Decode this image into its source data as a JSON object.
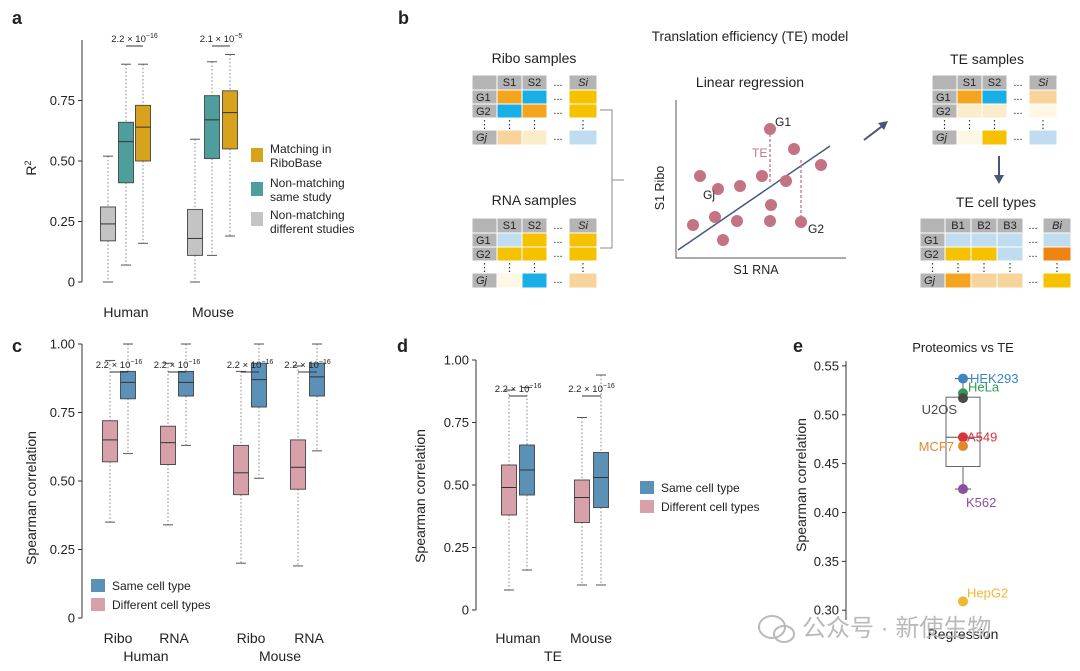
{
  "panels": {
    "a": "a",
    "b": "b",
    "c": "c",
    "d": "d",
    "e": "e"
  },
  "colors": {
    "gold": "#d9a21c",
    "teal": "#4f9e9e",
    "grey": "#c4c4c4",
    "blue": "#5b90b7",
    "pink": "#d8a0a8",
    "regLine": "#45578c",
    "dot": "#c47384",
    "teLine": "#c47384",
    "arrow": "#45587a",
    "cell_orange": "#f4a41e",
    "cell_yellow": "#f6c200",
    "cell_blue": "#1aaee6",
    "cell_lightblue": "#c0dcef",
    "cell_peach": "#f6d49b",
    "cell_cream": "#fbedc9",
    "cell_pale": "#fdf7e6",
    "cell_header": "#b4b4b4",
    "cell_deeporange": "#f0820e"
  },
  "chart_data": [
    {
      "id": "a",
      "type": "box",
      "ylabel": "R",
      "ylabel_sup": "2",
      "ylim": [
        0,
        1.0
      ],
      "yticks": [
        0,
        0.25,
        0.5,
        0.75
      ],
      "yticklabels": [
        "0",
        "0.25",
        "0.50",
        "0.75"
      ],
      "groups": [
        "Human",
        "Mouse"
      ],
      "series": [
        {
          "name": "Non-matching\ndifferent studies",
          "color": "#c4c4c4"
        },
        {
          "name": "Non-matching\nsame study",
          "color": "#4f9e9e"
        },
        {
          "name": "Matching in\nRiboBase",
          "color": "#d9a21c"
        }
      ],
      "legend": [
        {
          "line1": "Matching in",
          "line2": "RiboBase",
          "color": "#d9a21c"
        },
        {
          "line1": "Non-matching",
          "line2": "same study",
          "color": "#4f9e9e"
        },
        {
          "line1": "Non-matching",
          "line2": "different studies",
          "color": "#c4c4c4"
        }
      ],
      "boxes": [
        {
          "group": "Human",
          "series": 0,
          "min": 0.0,
          "q1": 0.17,
          "median": 0.24,
          "q3": 0.31,
          "max": 0.52
        },
        {
          "group": "Human",
          "series": 1,
          "min": 0.07,
          "q1": 0.41,
          "median": 0.58,
          "q3": 0.66,
          "max": 0.9
        },
        {
          "group": "Human",
          "series": 2,
          "min": 0.16,
          "q1": 0.5,
          "median": 0.64,
          "q3": 0.73,
          "max": 0.9
        },
        {
          "group": "Mouse",
          "series": 0,
          "min": 0.0,
          "q1": 0.11,
          "median": 0.18,
          "q3": 0.3,
          "max": 0.59
        },
        {
          "group": "Mouse",
          "series": 1,
          "min": 0.11,
          "q1": 0.51,
          "median": 0.67,
          "q3": 0.77,
          "max": 0.91
        },
        {
          "group": "Mouse",
          "series": 2,
          "min": 0.19,
          "q1": 0.55,
          "median": 0.7,
          "q3": 0.79,
          "max": 0.94
        }
      ],
      "pvalues": [
        {
          "group": "Human",
          "text": "2.2 × 10",
          "exp": "−16"
        },
        {
          "group": "Mouse",
          "text": "2.1 × 10",
          "exp": "−5"
        }
      ]
    },
    {
      "id": "c",
      "type": "box",
      "ylabel": "Spearman correlation",
      "ylim": [
        0,
        1.0
      ],
      "yticks": [
        0,
        0.25,
        0.5,
        0.75,
        1.0
      ],
      "yticklabels": [
        "0",
        "0.25",
        "0.50",
        "0.75",
        "1.00"
      ],
      "groups": [
        "Ribo",
        "RNA",
        "Ribo",
        "RNA"
      ],
      "supergroups": [
        "Human",
        "Mouse"
      ],
      "series": [
        {
          "name": "Different cell types",
          "color": "#d8a0a8"
        },
        {
          "name": "Same cell type",
          "color": "#5b90b7"
        }
      ],
      "legend": [
        {
          "label": "Same cell type",
          "color": "#5b90b7"
        },
        {
          "label": "Different cell types",
          "color": "#d8a0a8"
        }
      ],
      "boxes": [
        {
          "group": 0,
          "series": 0,
          "min": 0.35,
          "q1": 0.57,
          "median": 0.65,
          "q3": 0.72,
          "max": 0.94
        },
        {
          "group": 0,
          "series": 1,
          "min": 0.6,
          "q1": 0.8,
          "median": 0.86,
          "q3": 0.9,
          "max": 1.0
        },
        {
          "group": 1,
          "series": 0,
          "min": 0.34,
          "q1": 0.56,
          "median": 0.64,
          "q3": 0.7,
          "max": 0.93
        },
        {
          "group": 1,
          "series": 1,
          "min": 0.63,
          "q1": 0.81,
          "median": 0.86,
          "q3": 0.9,
          "max": 1.0
        },
        {
          "group": 2,
          "series": 0,
          "min": 0.2,
          "q1": 0.45,
          "median": 0.53,
          "q3": 0.63,
          "max": 0.9
        },
        {
          "group": 2,
          "series": 1,
          "min": 0.51,
          "q1": 0.77,
          "median": 0.87,
          "q3": 0.93,
          "max": 1.0
        },
        {
          "group": 3,
          "series": 0,
          "min": 0.19,
          "q1": 0.47,
          "median": 0.55,
          "q3": 0.65,
          "max": 0.92
        },
        {
          "group": 3,
          "series": 1,
          "min": 0.61,
          "q1": 0.81,
          "median": 0.88,
          "q3": 0.93,
          "max": 1.0
        }
      ],
      "pvalues": [
        {
          "group": 0,
          "text": "2.2 × 10",
          "exp": "−16"
        },
        {
          "group": 1,
          "text": "2.2 × 10",
          "exp": "−16"
        },
        {
          "group": 2,
          "text": "2.2 × 10",
          "exp": "−16"
        },
        {
          "group": 3,
          "text": "2.2 × 10",
          "exp": "−16"
        }
      ]
    },
    {
      "id": "d",
      "type": "box",
      "ylabel": "Spearman correlation",
      "xlabel": "TE",
      "ylim": [
        0,
        1.0
      ],
      "yticks": [
        0,
        0.25,
        0.5,
        0.75,
        1.0
      ],
      "yticklabels": [
        "0",
        "0.25",
        "0.50",
        "0.75",
        "1.00"
      ],
      "groups": [
        "Human",
        "Mouse"
      ],
      "series": [
        {
          "name": "Different cell types",
          "color": "#d8a0a8"
        },
        {
          "name": "Same cell type",
          "color": "#5b90b7"
        }
      ],
      "legend": [
        {
          "label": "Same cell type",
          "color": "#5b90b7"
        },
        {
          "label": "Different cell types",
          "color": "#d8a0a8"
        }
      ],
      "boxes": [
        {
          "group": 0,
          "series": 0,
          "min": 0.08,
          "q1": 0.38,
          "median": 0.49,
          "q3": 0.58,
          "max": 0.88
        },
        {
          "group": 0,
          "series": 1,
          "min": 0.16,
          "q1": 0.46,
          "median": 0.56,
          "q3": 0.66,
          "max": 0.89
        },
        {
          "group": 1,
          "series": 0,
          "min": 0.1,
          "q1": 0.35,
          "median": 0.45,
          "q3": 0.52,
          "max": 0.77
        },
        {
          "group": 1,
          "series": 1,
          "min": 0.1,
          "q1": 0.41,
          "median": 0.53,
          "q3": 0.63,
          "max": 0.94
        }
      ],
      "pvalues": [
        {
          "group": 0,
          "text": "2.2 × 10",
          "exp": "−16"
        },
        {
          "group": 1,
          "text": "2.2 × 10",
          "exp": "−16"
        }
      ]
    },
    {
      "id": "e",
      "type": "scatter",
      "title": "Proteomics vs TE",
      "ylabel": "Spearman correlation",
      "xlabel": "Regression",
      "ylim": [
        0.29,
        0.555
      ],
      "yticks": [
        0.3,
        0.35,
        0.4,
        0.45,
        0.5,
        0.55
      ],
      "yticklabels": [
        "0.30",
        "0.35",
        "0.40",
        "0.45",
        "0.50",
        "0.55"
      ],
      "box": {
        "min": 0.424,
        "q1": 0.447,
        "median": 0.477,
        "q3": 0.518,
        "max": 0.537
      },
      "points": [
        {
          "label": "HEK293",
          "y": 0.537,
          "color": "#3d86c4"
        },
        {
          "label": "HeLa",
          "y": 0.522,
          "color": "#2f9a52"
        },
        {
          "label": "U2OS",
          "y": 0.517,
          "color": "#4a4a4a"
        },
        {
          "label": "A549",
          "y": 0.477,
          "color": "#d8343e"
        },
        {
          "label": "MCF7",
          "y": 0.468,
          "color": "#e08a30"
        },
        {
          "label": "K562",
          "y": 0.424,
          "color": "#8e4ea0"
        },
        {
          "label": "HepG2",
          "y": 0.309,
          "color": "#f2b632"
        }
      ]
    }
  ],
  "diagram_b": {
    "title": "Translation efficiency (TE) model",
    "ribo_title": "Ribo samples",
    "rna_title": "RNA samples",
    "te_title": "TE samples",
    "tecell_title": "TE cell types",
    "lr_title": "Linear regression",
    "lr_xlabel": "S1 RNA",
    "lr_ylabel": "S1 Ribo",
    "lr_labels": {
      "g1": "G1",
      "g2": "G2",
      "gj": "Gj",
      "te": "TE"
    },
    "col_headers": [
      "S1",
      "S2",
      "Si"
    ],
    "cell_headers": [
      "B1",
      "B2",
      "B3",
      "Bi"
    ],
    "row_headers": [
      "G1",
      "G2",
      "Gj"
    ],
    "dots_h": "...",
    "dots_v": "⋮"
  },
  "watermark": "公众号 · 新使生物"
}
